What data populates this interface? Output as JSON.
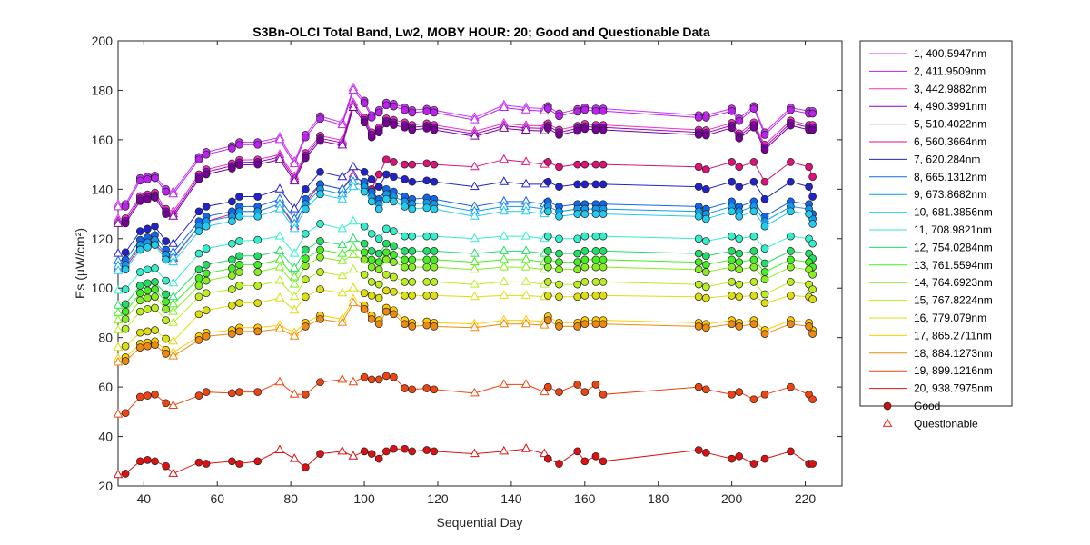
{
  "chart_data": {
    "type": "line",
    "title": "S3Bn-OLCI Total Band,  Lw2, MOBY HOUR: 20;  Good and Questionable Data",
    "xlabel": "Sequential Day",
    "ylabel": "Es (μW/cm²)",
    "xlim": [
      33,
      230
    ],
    "ylim": [
      20,
      200
    ],
    "xticks": [
      40,
      60,
      80,
      100,
      120,
      140,
      160,
      180,
      200,
      220
    ],
    "yticks": [
      20,
      40,
      60,
      80,
      100,
      120,
      140,
      160,
      180,
      200
    ],
    "grid": false,
    "legend_position": "outside-right",
    "marker_legend": [
      {
        "label": "Good",
        "marker": "circle",
        "color": "#cc1111"
      },
      {
        "label": "Questionable",
        "marker": "triangle",
        "color": "#ee2222"
      }
    ],
    "x": [
      33,
      35,
      39,
      41,
      43,
      46,
      48,
      55,
      57,
      64,
      66,
      71,
      77,
      81,
      84,
      88,
      94,
      97,
      100,
      102,
      104,
      106,
      108,
      111,
      113,
      117,
      119,
      130,
      138,
      144,
      149,
      150,
      153,
      158,
      160,
      163,
      165,
      191,
      193,
      200,
      202,
      206,
      209,
      216,
      221,
      222
    ],
    "good_indices": [
      1,
      2,
      3,
      4,
      5,
      7,
      8,
      9,
      10,
      11,
      14,
      15,
      18,
      19,
      20,
      21,
      22,
      23,
      24,
      25,
      26,
      31,
      32,
      33,
      34,
      35,
      36,
      37,
      38,
      39,
      40,
      41,
      42,
      43,
      44,
      45
    ],
    "questionable_indices": [
      0,
      6,
      12,
      13,
      16,
      17,
      27,
      28,
      29,
      30
    ],
    "series": [
      {
        "name": "1, 400.5947nm",
        "color": "#cc33ff",
        "values": [
          133.8,
          134.0,
          144.5,
          145.0,
          145.5,
          140.0,
          139.0,
          153.0,
          155.0,
          157.5,
          159.0,
          159.0,
          161.0,
          151.2,
          162.0,
          169.5,
          167.0,
          181.0,
          175.8,
          170.0,
          172.0,
          175.0,
          174.5,
          173.0,
          172.0,
          172.5,
          172.0,
          169.0,
          174.0,
          173.0,
          172.6,
          173.6,
          170.6,
          172.4,
          173.1,
          172.6,
          172.6,
          170.0,
          170.0,
          172.6,
          168.6,
          173.6,
          163.0,
          173.0,
          171.6,
          171.6
        ]
      },
      {
        "name": "2, 411.9509nm",
        "color": "#bb22ee",
        "values": [
          132.8,
          133.0,
          143.5,
          144.0,
          144.5,
          139.0,
          138.0,
          152.0,
          154.0,
          156.5,
          158.0,
          158.0,
          160.0,
          150.2,
          161.0,
          168.5,
          166.0,
          180.0,
          174.8,
          169.0,
          171.0,
          174.0,
          173.5,
          172.0,
          171.0,
          171.5,
          171.0,
          168.0,
          173.0,
          172.0,
          171.6,
          172.6,
          169.6,
          171.4,
          172.1,
          171.6,
          171.6,
          169.0,
          169.0,
          171.6,
          167.6,
          172.6,
          162.0,
          172.0,
          170.6,
          170.6
        ]
      },
      {
        "name": "3, 442.9882nm",
        "color": "#ee33bb",
        "values": [
          128.0,
          128.2,
          137.2,
          137.9,
          138.6,
          132.0,
          131.0,
          146.0,
          148.0,
          150.4,
          151.8,
          152.0,
          154.0,
          145.2,
          154.6,
          161.6,
          159.8,
          175.0,
          169.0,
          163.0,
          165.0,
          168.6,
          168.0,
          167.0,
          166.0,
          166.6,
          166.0,
          163.4,
          166.6,
          165.8,
          165.6,
          166.6,
          164.0,
          165.6,
          166.4,
          166.0,
          166.0,
          164.0,
          163.8,
          166.8,
          162.6,
          167.0,
          158.0,
          167.8,
          166.0,
          166.0
        ]
      },
      {
        "name": "4, 490.3991nm",
        "color": "#9900cc",
        "values": [
          127.0,
          127.2,
          136.2,
          136.9,
          137.6,
          131.0,
          130.0,
          145.0,
          147.0,
          149.4,
          150.8,
          151.0,
          153.0,
          144.2,
          153.6,
          160.6,
          158.8,
          174.0,
          168.0,
          162.0,
          164.0,
          167.6,
          167.0,
          166.0,
          165.0,
          165.6,
          165.0,
          162.4,
          165.6,
          164.8,
          164.6,
          165.6,
          163.0,
          164.6,
          165.4,
          165.0,
          165.0,
          163.0,
          162.8,
          165.8,
          161.6,
          166.0,
          157.0,
          166.8,
          165.0,
          165.0
        ]
      },
      {
        "name": "5, 510.4022nm",
        "color": "#770099",
        "values": [
          126.0,
          126.2,
          135.2,
          135.9,
          136.6,
          130.0,
          129.0,
          144.0,
          146.0,
          148.4,
          149.8,
          150.0,
          152.0,
          143.2,
          152.6,
          159.6,
          157.8,
          173.0,
          167.0,
          161.0,
          163.0,
          166.6,
          166.0,
          165.0,
          164.0,
          164.6,
          164.0,
          161.4,
          164.6,
          163.8,
          163.6,
          164.6,
          162.0,
          163.6,
          164.4,
          164.0,
          164.0,
          162.0,
          161.8,
          164.8,
          160.6,
          165.0,
          156.0,
          165.8,
          164.0,
          164.0
        ]
      },
      {
        "name": "6, 560.3664nm",
        "color": "#dd1177",
        "values": [
          108.0,
          108.5,
          116.5,
          117.5,
          118.0,
          113.0,
          112.0,
          125.0,
          127.0,
          130.0,
          131.0,
          131.0,
          134.0,
          125.0,
          134.5,
          142.0,
          140.0,
          146.0,
          142.0,
          140.0,
          146.0,
          152.0,
          151.0,
          150.0,
          150.0,
          150.5,
          150.0,
          149.0,
          152.0,
          151.0,
          150.0,
          151.0,
          149.0,
          150.0,
          150.0,
          150.0,
          150.0,
          149.0,
          148.0,
          151.0,
          149.0,
          151.0,
          143.0,
          151.0,
          149.0,
          145.0
        ]
      },
      {
        "name": "7,  620.284nm",
        "color": "#2222cc",
        "values": [
          114.0,
          114.5,
          123.0,
          124.0,
          125.0,
          119.0,
          118.0,
          131.0,
          133.0,
          135.0,
          137.0,
          137.0,
          140.0,
          132.0,
          140.0,
          147.0,
          145.0,
          149.0,
          147.0,
          144.0,
          141.0,
          146.0,
          145.0,
          144.0,
          143.0,
          143.5,
          143.0,
          141.0,
          143.0,
          142.0,
          142.0,
          143.0,
          141.0,
          142.0,
          142.0,
          142.0,
          142.0,
          141.0,
          140.0,
          143.0,
          141.0,
          143.0,
          136.0,
          143.0,
          141.0,
          137.0
        ]
      },
      {
        "name": "8, 665.1312nm",
        "color": "#1166ee",
        "values": [
          111.0,
          111.5,
          119.5,
          120.5,
          121.5,
          115.5,
          114.5,
          127.0,
          129.0,
          131.0,
          133.0,
          133.0,
          136.0,
          128.0,
          136.0,
          142.0,
          140.0,
          145.0,
          143.0,
          139.0,
          136.0,
          140.0,
          139.0,
          137.0,
          136.0,
          136.5,
          136.0,
          133.0,
          135.0,
          135.0,
          134.0,
          135.0,
          133.0,
          134.0,
          134.0,
          134.0,
          134.0,
          133.0,
          132.0,
          135.0,
          133.0,
          135.0,
          129.0,
          135.0,
          134.0,
          130.0
        ]
      },
      {
        "name": "9, 673.8682nm",
        "color": "#1199ee",
        "values": [
          109.0,
          109.5,
          117.5,
          118.5,
          119.5,
          113.5,
          112.5,
          125.0,
          127.0,
          129.0,
          131.0,
          131.0,
          134.0,
          126.0,
          134.0,
          140.0,
          138.0,
          143.0,
          141.0,
          137.0,
          134.0,
          138.0,
          137.0,
          135.0,
          134.0,
          134.5,
          134.0,
          131.0,
          133.0,
          133.0,
          132.0,
          133.0,
          131.0,
          132.0,
          132.0,
          132.0,
          132.0,
          131.0,
          130.0,
          133.0,
          131.0,
          133.0,
          127.0,
          133.0,
          132.0,
          128.0
        ]
      },
      {
        "name": "10, 681.3856nm",
        "color": "#22ccee",
        "values": [
          107.0,
          107.5,
          115.5,
          116.5,
          117.5,
          111.5,
          110.5,
          123.0,
          125.0,
          127.0,
          129.0,
          129.0,
          132.0,
          124.0,
          132.0,
          138.0,
          136.0,
          141.0,
          139.0,
          135.0,
          132.0,
          136.0,
          135.0,
          133.0,
          132.0,
          132.5,
          132.0,
          129.0,
          131.0,
          131.0,
          130.0,
          131.0,
          129.0,
          130.0,
          130.0,
          130.0,
          130.0,
          129.0,
          128.0,
          131.0,
          129.0,
          131.0,
          125.0,
          131.0,
          130.0,
          126.0
        ]
      },
      {
        "name": "11, 708.9821nm",
        "color": "#33eecc",
        "values": [
          99.0,
          99.5,
          106.5,
          107.5,
          108.0,
          103.0,
          102.0,
          114.0,
          116.0,
          118.0,
          119.0,
          119.5,
          121.0,
          114.0,
          122.0,
          126.0,
          124.0,
          127.0,
          125.0,
          122.0,
          120.0,
          124.0,
          123.0,
          121.0,
          121.0,
          121.0,
          121.0,
          120.0,
          121.0,
          121.0,
          120.0,
          121.0,
          120.0,
          120.0,
          121.0,
          121.0,
          121.0,
          120.0,
          119.0,
          121.0,
          120.0,
          121.0,
          116.0,
          121.0,
          120.0,
          118.0
        ]
      },
      {
        "name": "12, 754.0284nm",
        "color": "#22dd66",
        "values": [
          93.0,
          93.5,
          101.0,
          102.0,
          102.5,
          97.5,
          96.5,
          107.5,
          109.5,
          111.5,
          113.0,
          113.0,
          115.0,
          108.0,
          115.5,
          119.0,
          117.5,
          120.0,
          118.0,
          115.0,
          114.0,
          118.0,
          117.0,
          115.0,
          115.0,
          115.0,
          115.0,
          114.0,
          115.0,
          115.0,
          114.0,
          115.0,
          114.0,
          114.0,
          115.0,
          115.0,
          115.0,
          114.0,
          113.0,
          115.0,
          114.0,
          115.0,
          110.0,
          115.0,
          114.0,
          112.0
        ]
      },
      {
        "name": "13, 761.5594nm",
        "color": "#44ee22",
        "values": [
          90.0,
          90.5,
          98.0,
          99.0,
          99.5,
          94.5,
          93.5,
          104.0,
          106.0,
          108.0,
          109.5,
          109.5,
          111.5,
          104.5,
          112.0,
          115.5,
          114.0,
          116.5,
          114.5,
          111.5,
          110.5,
          114.5,
          113.5,
          111.5,
          111.5,
          111.5,
          111.5,
          110.5,
          111.5,
          111.5,
          110.5,
          111.5,
          110.5,
          110.5,
          111.5,
          111.5,
          111.5,
          110.5,
          109.5,
          111.5,
          110.5,
          111.5,
          106.5,
          111.5,
          110.5,
          108.5
        ]
      },
      {
        "name": "14, 764.6923nm",
        "color": "#88ee22",
        "values": [
          87.0,
          87.5,
          95.0,
          96.0,
          96.5,
          91.5,
          90.5,
          101.0,
          103.0,
          105.0,
          106.5,
          106.5,
          108.5,
          101.5,
          109.0,
          112.5,
          111.0,
          113.5,
          111.5,
          108.5,
          107.5,
          111.5,
          110.5,
          108.5,
          108.5,
          108.5,
          108.5,
          107.5,
          108.5,
          108.5,
          107.5,
          108.5,
          107.5,
          107.5,
          108.5,
          108.5,
          108.5,
          107.5,
          106.5,
          108.5,
          107.5,
          108.5,
          103.5,
          108.5,
          107.5,
          105.5
        ]
      },
      {
        "name": "15, 767.8224nm",
        "color": "#bbee22",
        "values": [
          83.0,
          83.5,
          90.5,
          91.5,
          92.0,
          87.0,
          86.0,
          96.5,
          98.0,
          99.5,
          101.0,
          101.0,
          103.0,
          96.5,
          103.5,
          106.5,
          105.0,
          107.5,
          105.5,
          102.5,
          101.5,
          105.5,
          104.5,
          102.5,
          102.5,
          102.5,
          102.5,
          101.5,
          102.5,
          102.5,
          101.5,
          102.5,
          101.5,
          101.5,
          102.5,
          102.5,
          102.5,
          101.5,
          100.5,
          102.5,
          101.5,
          102.5,
          97.5,
          102.5,
          101.5,
          99.5
        ]
      },
      {
        "name": "16,  779.079nm",
        "color": "#dddd11",
        "values": [
          76.0,
          76.5,
          82.0,
          82.5,
          83.0,
          79.5,
          78.5,
          89.5,
          91.0,
          93.0,
          94.0,
          94.0,
          96.0,
          91.0,
          96.5,
          99.5,
          98.0,
          100.0,
          98.0,
          97.0,
          96.0,
          99.0,
          98.5,
          97.0,
          97.0,
          97.0,
          97.0,
          96.5,
          97.0,
          97.0,
          96.5,
          97.0,
          96.5,
          96.5,
          97.0,
          97.0,
          97.0,
          96.5,
          96.0,
          97.0,
          96.5,
          97.0,
          94.0,
          97.0,
          96.5,
          95.5
        ]
      },
      {
        "name": "17, 865.2711nm",
        "color": "#ffcc00",
        "values": [
          71.5,
          72.0,
          77.5,
          78.0,
          78.5,
          75.0,
          74.0,
          80.5,
          82.0,
          83.0,
          84.0,
          84.0,
          85.0,
          82.0,
          86.0,
          89.0,
          87.5,
          95.5,
          93.0,
          89.0,
          87.0,
          92.0,
          91.0,
          87.0,
          86.0,
          86.5,
          86.0,
          85.5,
          87.0,
          87.0,
          86.5,
          88.5,
          86.0,
          86.0,
          87.0,
          87.0,
          87.0,
          86.0,
          85.5,
          87.0,
          86.0,
          87.0,
          83.0,
          87.0,
          86.0,
          83.0
        ]
      },
      {
        "name": "18, 884.1273nm",
        "color": "#ee8811",
        "values": [
          70.0,
          70.5,
          76.0,
          76.5,
          77.0,
          73.5,
          72.5,
          79.0,
          80.5,
          81.5,
          82.5,
          82.5,
          83.5,
          80.5,
          84.5,
          87.5,
          86.0,
          94.0,
          91.5,
          87.5,
          85.5,
          90.5,
          89.5,
          85.5,
          84.5,
          85.0,
          84.5,
          84.0,
          85.5,
          85.5,
          85.0,
          87.0,
          84.5,
          84.5,
          85.5,
          85.5,
          85.5,
          84.5,
          84.0,
          85.5,
          84.5,
          85.5,
          81.5,
          85.5,
          84.5,
          81.5
        ]
      },
      {
        "name": "19, 899.1216nm",
        "color": "#ee4411",
        "values": [
          49.0,
          49.5,
          56.0,
          56.5,
          57.0,
          53.5,
          52.5,
          56.5,
          58.0,
          57.5,
          58.0,
          58.0,
          62.0,
          57.0,
          57.0,
          62.0,
          63.0,
          62.0,
          64.0,
          63.0,
          63.0,
          64.5,
          64.0,
          59.5,
          59.0,
          59.5,
          59.0,
          57.5,
          61.0,
          61.0,
          58.0,
          60.0,
          58.0,
          61.0,
          58.0,
          61.0,
          57.0,
          60.0,
          59.0,
          57.0,
          58.0,
          55.0,
          57.0,
          60.0,
          57.0,
          55.0
        ]
      },
      {
        "name": "20, 938.7975nm",
        "color": "#dd1111",
        "values": [
          24.5,
          25.0,
          30.0,
          30.5,
          30.0,
          28.0,
          25.0,
          29.5,
          29.0,
          30.0,
          29.0,
          30.0,
          34.5,
          31.0,
          27.5,
          33.0,
          34.0,
          32.0,
          34.0,
          33.0,
          31.0,
          34.0,
          35.0,
          35.0,
          34.0,
          34.5,
          34.0,
          33.0,
          34.0,
          35.0,
          33.0,
          31.0,
          29.0,
          34.0,
          30.0,
          32.0,
          30.0,
          34.5,
          33.5,
          31.0,
          32.0,
          29.0,
          31.0,
          34.0,
          29.0,
          29.0
        ]
      }
    ]
  }
}
